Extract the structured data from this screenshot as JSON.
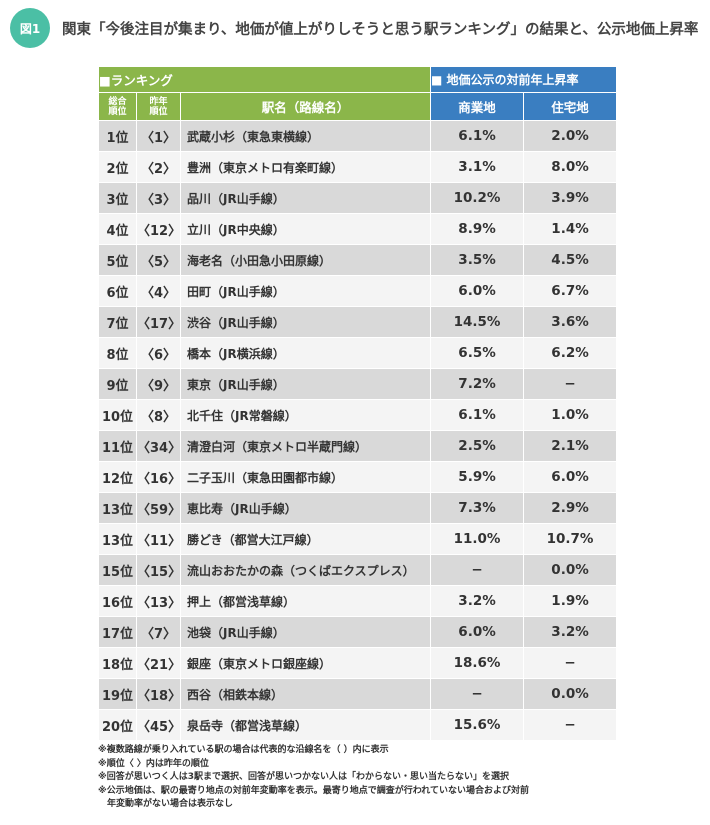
{
  "figure_label": "図1",
  "title": "関東「今後注目が集まり、地価が値上がりしそうと思う駅ランキング」の結果と、公示地価上昇率",
  "table": {
    "ranking_header": "■ランキング",
    "land_header": "■ 地価公示の対前年上昇率",
    "col_rank_line1": "総合",
    "col_rank_line2": "順位",
    "col_prev_line1": "昨年",
    "col_prev_line2": "順位",
    "col_name": "駅名（路線名）",
    "col_commercial": "商業地",
    "col_residential": "住宅地",
    "rows": [
      {
        "rank": "1位",
        "prev": "〈1〉",
        "name": "武蔵小杉（東急東横線）",
        "commercial": "6.1%",
        "residential": "2.0%"
      },
      {
        "rank": "2位",
        "prev": "〈2〉",
        "name": "豊洲（東京メトロ有楽町線）",
        "commercial": "3.1%",
        "residential": "8.0%"
      },
      {
        "rank": "3位",
        "prev": "〈3〉",
        "name": "品川（JR山手線）",
        "commercial": "10.2%",
        "residential": "3.9%"
      },
      {
        "rank": "4位",
        "prev": "〈12〉",
        "name": "立川（JR中央線）",
        "commercial": "8.9%",
        "residential": "1.4%"
      },
      {
        "rank": "5位",
        "prev": "〈5〉",
        "name": "海老名（小田急小田原線）",
        "commercial": "3.5%",
        "residential": "4.5%"
      },
      {
        "rank": "6位",
        "prev": "〈4〉",
        "name": "田町（JR山手線）",
        "commercial": "6.0%",
        "residential": "6.7%"
      },
      {
        "rank": "7位",
        "prev": "〈17〉",
        "name": "渋谷（JR山手線）",
        "commercial": "14.5%",
        "residential": "3.6%"
      },
      {
        "rank": "8位",
        "prev": "〈6〉",
        "name": "橋本（JR横浜線）",
        "commercial": "6.5%",
        "residential": "6.2%"
      },
      {
        "rank": "9位",
        "prev": "〈9〉",
        "name": "東京（JR山手線）",
        "commercial": "7.2%",
        "residential": "−"
      },
      {
        "rank": "10位",
        "prev": "〈8〉",
        "name": "北千住（JR常磐線）",
        "commercial": "6.1%",
        "residential": "1.0%"
      },
      {
        "rank": "11位",
        "prev": "〈34〉",
        "name": "清澄白河（東京メトロ半蔵門線）",
        "commercial": "2.5%",
        "residential": "2.1%"
      },
      {
        "rank": "12位",
        "prev": "〈16〉",
        "name": "二子玉川（東急田園都市線）",
        "commercial": "5.9%",
        "residential": "6.0%"
      },
      {
        "rank": "13位",
        "prev": "〈59〉",
        "name": "恵比寿（JR山手線）",
        "commercial": "7.3%",
        "residential": "2.9%"
      },
      {
        "rank": "13位",
        "prev": "〈11〉",
        "name": "勝どき（都営大江戸線）",
        "commercial": "11.0%",
        "residential": "10.7%"
      },
      {
        "rank": "15位",
        "prev": "〈15〉",
        "name": "流山おおたかの森（つくばエクスプレス）",
        "commercial": "−",
        "residential": "0.0%"
      },
      {
        "rank": "16位",
        "prev": "〈13〉",
        "name": "押上（都営浅草線）",
        "commercial": "3.2%",
        "residential": "1.9%"
      },
      {
        "rank": "17位",
        "prev": "〈7〉",
        "name": "池袋（JR山手線）",
        "commercial": "6.0%",
        "residential": "3.2%"
      },
      {
        "rank": "18位",
        "prev": "〈21〉",
        "name": "銀座（東京メトロ銀座線）",
        "commercial": "18.6%",
        "residential": "−"
      },
      {
        "rank": "19位",
        "prev": "〈18〉",
        "name": "西谷（相鉄本線）",
        "commercial": "−",
        "residential": "0.0%"
      },
      {
        "rank": "20位",
        "prev": "〈45〉",
        "name": "泉岳寺（都営浅草線）",
        "commercial": "15.6%",
        "residential": "−"
      }
    ]
  },
  "notes": [
    "※複数路線が乗り入れている駅の場合は代表的な沿線名を（ ）内に表示",
    "※順位〈 〉内は昨年の順位",
    "※回答が思いつく人は3駅まで選択、回答が思いつかない人は「わからない・思い当たらない」を選択",
    "※公示地価は、駅の最寄り地点の対前年変動率を表示。最寄り地点で調査が行われていない場合および対前",
    "　年変動率がない場合は表示なし"
  ],
  "colors": {
    "badge": "#4bbfa5",
    "ranking_header": "#8bb64a",
    "land_header": "#3a7ec1",
    "row_gray": "#d9d9d9",
    "row_white": "#f4f4f4"
  }
}
